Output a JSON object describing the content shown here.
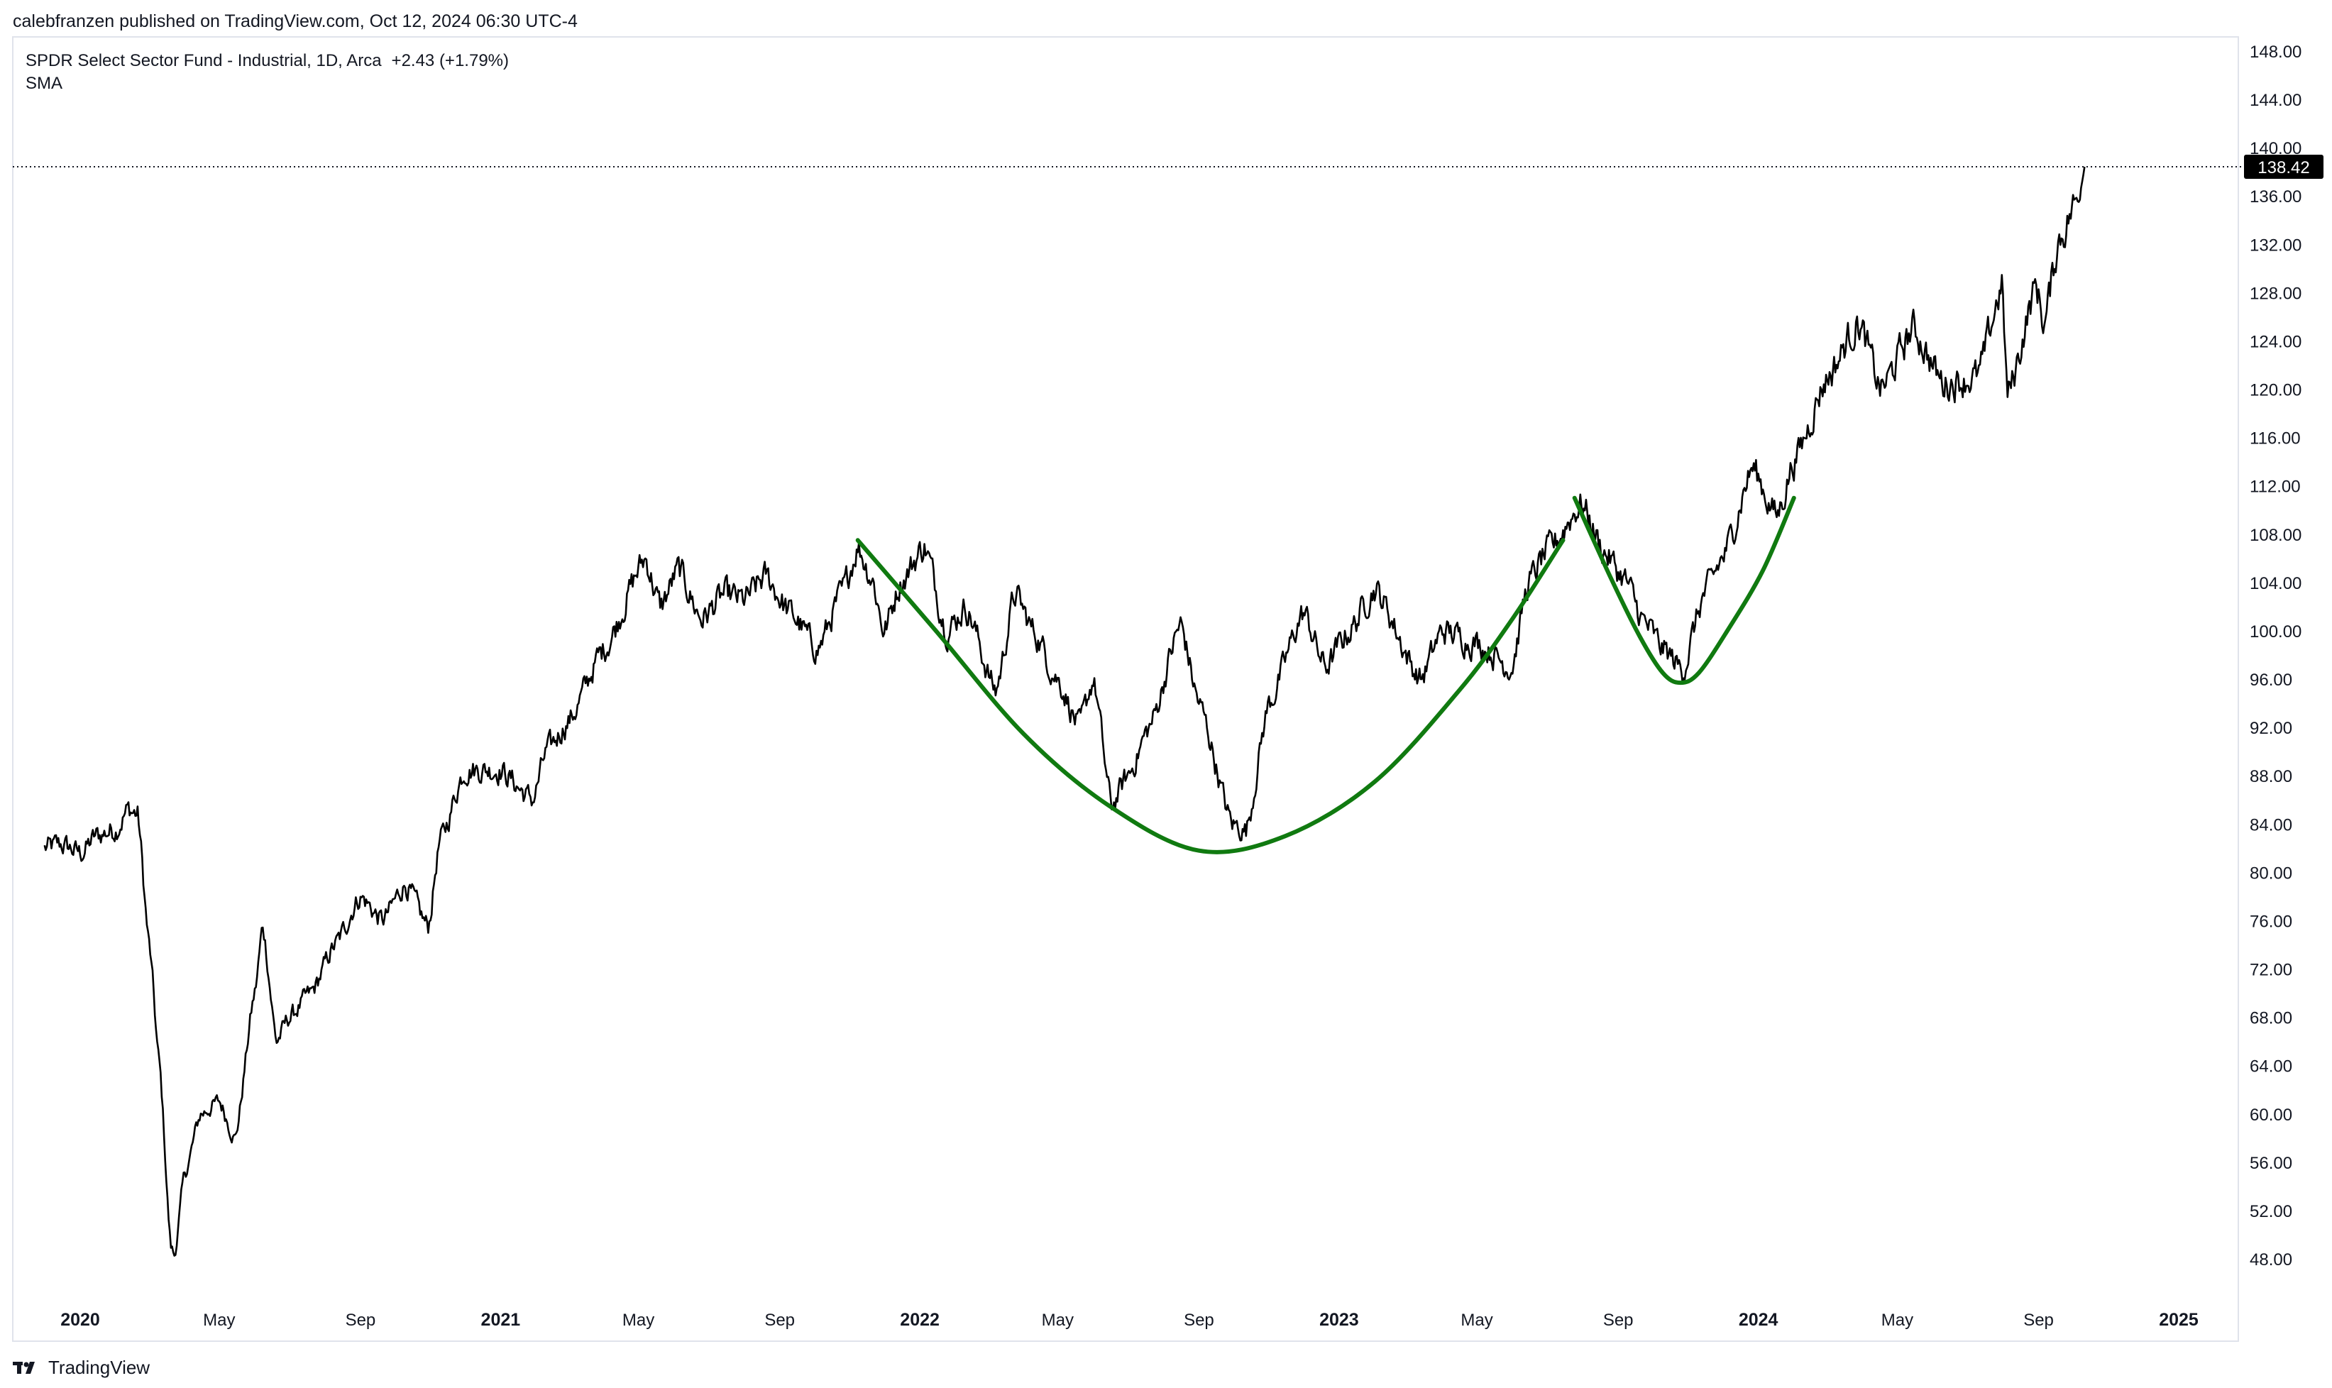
{
  "header": {
    "publish_line": "calebfranzen published on TradingView.com, Oct 12, 2024 06:30 UTC-4"
  },
  "legend": {
    "symbol_line": "SPDR Select Sector Fund - Industrial, 1D, Arca",
    "change": "+2.43 (+1.79%)",
    "indicator": "SMA"
  },
  "footer": {
    "brand": "TradingView"
  },
  "colors": {
    "price_line": "#000000",
    "pattern_line": "#107a10",
    "axis_text": "#131722",
    "border": "#e0e3eb",
    "last_price_bg": "#000000"
  },
  "chart_data": {
    "type": "line",
    "title": "SPDR Select Sector Fund - Industrial, 1D, Arca",
    "interval": "1D",
    "last_price": 138.42,
    "last_price_label": "138.42",
    "ylim": [
      44,
      150
    ],
    "y_ticks": [
      "148.00",
      "144.00",
      "140.00",
      "136.00",
      "132.00",
      "128.00",
      "124.00",
      "120.00",
      "116.00",
      "112.00",
      "108.00",
      "104.00",
      "100.00",
      "96.00",
      "92.00",
      "88.00",
      "84.00",
      "80.00",
      "76.00",
      "72.00",
      "68.00",
      "64.00",
      "60.00",
      "56.00",
      "52.00",
      "48.00"
    ],
    "x_ticks": [
      {
        "label": "2020",
        "date": "2020-01-01",
        "bold": true
      },
      {
        "label": "May",
        "date": "2020-05-01",
        "bold": false
      },
      {
        "label": "Sep",
        "date": "2020-09-01",
        "bold": false
      },
      {
        "label": "2021",
        "date": "2021-01-01",
        "bold": true
      },
      {
        "label": "May",
        "date": "2021-05-01",
        "bold": false
      },
      {
        "label": "Sep",
        "date": "2021-09-01",
        "bold": false
      },
      {
        "label": "2022",
        "date": "2022-01-01",
        "bold": true
      },
      {
        "label": "May",
        "date": "2022-05-01",
        "bold": false
      },
      {
        "label": "Sep",
        "date": "2022-09-01",
        "bold": false
      },
      {
        "label": "2023",
        "date": "2023-01-01",
        "bold": true
      },
      {
        "label": "May",
        "date": "2023-05-01",
        "bold": false
      },
      {
        "label": "Sep",
        "date": "2023-09-01",
        "bold": false
      },
      {
        "label": "2024",
        "date": "2024-01-01",
        "bold": true
      },
      {
        "label": "May",
        "date": "2024-05-01",
        "bold": false
      },
      {
        "label": "Sep",
        "date": "2024-09-01",
        "bold": false
      },
      {
        "label": "2025",
        "date": "2025-01-01",
        "bold": true
      }
    ],
    "series": [
      {
        "color": "#000000",
        "points": [
          [
            "2019-12-01",
            82.0
          ],
          [
            "2019-12-15",
            82.3
          ],
          [
            "2020-01-02",
            81.6
          ],
          [
            "2020-01-15",
            83.0
          ],
          [
            "2020-02-01",
            83.6
          ],
          [
            "2020-02-12",
            85.2
          ],
          [
            "2020-02-20",
            84.8
          ],
          [
            "2020-03-01",
            74.0
          ],
          [
            "2020-03-10",
            64.0
          ],
          [
            "2020-03-20",
            49.0
          ],
          [
            "2020-03-23",
            48.3
          ],
          [
            "2020-04-01",
            55.0
          ],
          [
            "2020-04-15",
            60.0
          ],
          [
            "2020-05-01",
            61.0
          ],
          [
            "2020-05-15",
            58.0
          ],
          [
            "2020-06-01",
            70.0
          ],
          [
            "2020-06-08",
            75.5
          ],
          [
            "2020-06-20",
            66.0
          ],
          [
            "2020-07-01",
            68.0
          ],
          [
            "2020-07-20",
            70.0
          ],
          [
            "2020-08-10",
            74.0
          ],
          [
            "2020-09-01",
            78.0
          ],
          [
            "2020-09-20",
            76.0
          ],
          [
            "2020-10-10",
            79.0
          ],
          [
            "2020-10-30",
            75.5
          ],
          [
            "2020-11-09",
            82.5
          ],
          [
            "2020-12-01",
            88.5
          ],
          [
            "2020-12-31",
            88.5
          ],
          [
            "2021-01-29",
            86.0
          ],
          [
            "2021-02-10",
            90.0
          ],
          [
            "2021-03-01",
            92.5
          ],
          [
            "2021-04-01",
            98.5
          ],
          [
            "2021-05-07",
            106.0
          ],
          [
            "2021-05-20",
            102.0
          ],
          [
            "2021-06-05",
            105.0
          ],
          [
            "2021-06-25",
            101.0
          ],
          [
            "2021-07-15",
            103.0
          ],
          [
            "2021-08-01",
            102.5
          ],
          [
            "2021-08-20",
            104.5
          ],
          [
            "2021-09-10",
            101.5
          ],
          [
            "2021-10-04",
            98.5
          ],
          [
            "2021-10-25",
            103.0
          ],
          [
            "2021-11-08",
            107.0
          ],
          [
            "2021-11-20",
            104.5
          ],
          [
            "2021-12-01",
            100.0
          ],
          [
            "2021-12-15",
            104.0
          ],
          [
            "2022-01-05",
            107.0
          ],
          [
            "2022-01-25",
            100.0
          ],
          [
            "2022-02-10",
            102.0
          ],
          [
            "2022-03-08",
            95.0
          ],
          [
            "2022-03-25",
            103.0
          ],
          [
            "2022-04-10",
            100.0
          ],
          [
            "2022-05-01",
            96.0
          ],
          [
            "2022-05-20",
            92.0
          ],
          [
            "2022-06-01",
            96.0
          ],
          [
            "2022-06-17",
            85.5
          ],
          [
            "2022-07-01",
            88.0
          ],
          [
            "2022-07-20",
            92.0
          ],
          [
            "2022-08-16",
            100.5
          ],
          [
            "2022-09-01",
            94.0
          ],
          [
            "2022-09-30",
            84.0
          ],
          [
            "2022-10-12",
            83.5
          ],
          [
            "2022-11-01",
            94.0
          ],
          [
            "2022-12-01",
            101.5
          ],
          [
            "2022-12-20",
            97.0
          ],
          [
            "2023-01-10",
            100.0
          ],
          [
            "2023-02-01",
            103.5
          ],
          [
            "2023-03-13",
            96.0
          ],
          [
            "2023-04-01",
            100.0
          ],
          [
            "2023-05-01",
            99.0
          ],
          [
            "2023-05-31",
            97.0
          ],
          [
            "2023-06-15",
            104.0
          ],
          [
            "2023-07-01",
            106.5
          ],
          [
            "2023-07-31",
            110.5
          ],
          [
            "2023-08-20",
            106.5
          ],
          [
            "2023-09-05",
            104.5
          ],
          [
            "2023-09-25",
            100.5
          ],
          [
            "2023-10-10",
            98.5
          ],
          [
            "2023-10-27",
            96.8
          ],
          [
            "2023-11-15",
            103.0
          ],
          [
            "2023-12-01",
            106.0
          ],
          [
            "2023-12-27",
            113.5
          ],
          [
            "2024-01-17",
            109.5
          ],
          [
            "2024-02-01",
            114.0
          ],
          [
            "2024-03-01",
            121.0
          ],
          [
            "2024-03-28",
            125.5
          ],
          [
            "2024-04-17",
            120.0
          ],
          [
            "2024-05-15",
            125.0
          ],
          [
            "2024-06-10",
            120.5
          ],
          [
            "2024-07-10",
            121.0
          ],
          [
            "2024-07-31",
            128.5
          ],
          [
            "2024-08-05",
            119.5
          ],
          [
            "2024-08-30",
            128.5
          ],
          [
            "2024-09-06",
            125.5
          ],
          [
            "2024-09-19",
            132.5
          ],
          [
            "2024-10-04",
            135.5
          ],
          [
            "2024-10-11",
            138.42
          ]
        ]
      }
    ],
    "annotations": [
      {
        "type": "curve",
        "color": "#107a10",
        "points": [
          [
            "2021-11-08",
            107.5
          ],
          [
            "2022-01-15",
            100.0
          ],
          [
            "2022-04-01",
            91.5
          ],
          [
            "2022-06-15",
            85.5
          ],
          [
            "2022-09-01",
            81.8
          ],
          [
            "2022-11-15",
            83.0
          ],
          [
            "2023-02-01",
            87.5
          ],
          [
            "2023-04-15",
            95.0
          ],
          [
            "2023-06-01",
            101.0
          ],
          [
            "2023-07-15",
            107.5
          ]
        ]
      },
      {
        "type": "curve",
        "color": "#107a10",
        "points": [
          [
            "2023-07-25",
            111.0
          ],
          [
            "2023-08-25",
            104.5
          ],
          [
            "2023-09-20",
            99.5
          ],
          [
            "2023-10-10",
            96.5
          ],
          [
            "2023-10-25",
            95.7
          ],
          [
            "2023-11-10",
            96.5
          ],
          [
            "2023-12-05",
            100.0
          ],
          [
            "2024-01-05",
            105.0
          ],
          [
            "2024-02-01",
            111.0
          ]
        ]
      }
    ]
  }
}
